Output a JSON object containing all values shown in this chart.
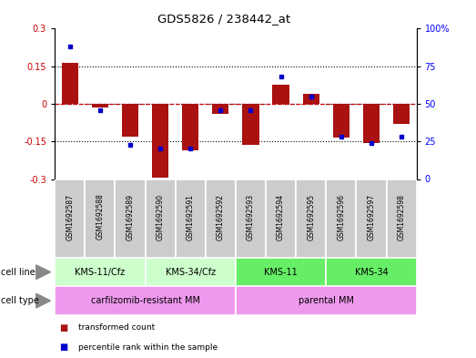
{
  "title": "GDS5826 / 238442_at",
  "samples": [
    "GSM1692587",
    "GSM1692588",
    "GSM1692589",
    "GSM1692590",
    "GSM1692591",
    "GSM1692592",
    "GSM1692593",
    "GSM1692594",
    "GSM1692595",
    "GSM1692596",
    "GSM1692597",
    "GSM1692598"
  ],
  "transformed_count": [
    0.165,
    -0.015,
    -0.13,
    -0.295,
    -0.185,
    -0.04,
    -0.165,
    0.075,
    0.04,
    -0.135,
    -0.155,
    -0.08
  ],
  "percentile_rank": [
    88,
    46,
    23,
    20,
    20,
    46,
    46,
    68,
    55,
    28,
    24,
    28
  ],
  "ylim_left": [
    -0.3,
    0.3
  ],
  "ylim_right": [
    0,
    100
  ],
  "yticks_left": [
    -0.3,
    -0.15,
    0,
    0.15,
    0.3
  ],
  "yticks_right": [
    0,
    25,
    50,
    75,
    100
  ],
  "ytick_labels_right": [
    "0",
    "25",
    "50",
    "75",
    "100%"
  ],
  "bar_color": "#aa1111",
  "dot_color": "#0000cc",
  "zero_line_color": "#cc0000",
  "hgrid_levels": [
    -0.15,
    0.0,
    0.15
  ],
  "cell_line_groups": [
    {
      "label": "KMS-11/Cfz",
      "start": 0,
      "end": 2,
      "color": "#ccffcc"
    },
    {
      "label": "KMS-34/Cfz",
      "start": 3,
      "end": 5,
      "color": "#ccffcc"
    },
    {
      "label": "KMS-11",
      "start": 6,
      "end": 8,
      "color": "#66ee66"
    },
    {
      "label": "KMS-34",
      "start": 9,
      "end": 11,
      "color": "#66ee66"
    }
  ],
  "cell_type_groups": [
    {
      "label": "carfilzomib-resistant MM",
      "start": 0,
      "end": 5,
      "color": "#ee99ee"
    },
    {
      "label": "parental MM",
      "start": 6,
      "end": 11,
      "color": "#ee99ee"
    }
  ],
  "sample_box_color": "#cccccc",
  "sample_box_border": "#ffffff",
  "legend_items": [
    {
      "label": "transformed count",
      "color": "#aa1111"
    },
    {
      "label": "percentile rank within the sample",
      "color": "#0000cc"
    }
  ]
}
